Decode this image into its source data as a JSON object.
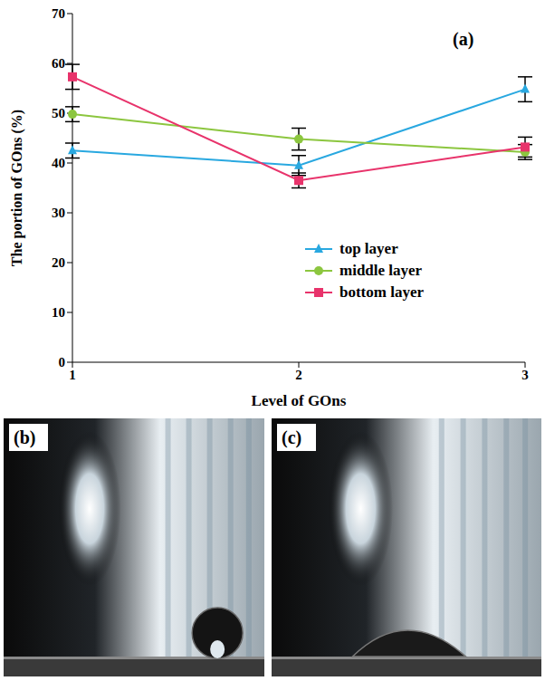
{
  "chart_data": {
    "type": "line",
    "panel_label": "(a)",
    "x_label": "Level of GOns",
    "y_label": "The portion of GOns (%)",
    "x": [
      1,
      2,
      3
    ],
    "xlim": [
      1,
      3
    ],
    "xticks": [
      1,
      2,
      3
    ],
    "ylim": [
      0,
      70
    ],
    "yticks": [
      0,
      10,
      20,
      30,
      40,
      50,
      60,
      70
    ],
    "legend": "lower right",
    "series": [
      {
        "name": "top layer",
        "color": "#29a8e0",
        "marker": "triangle",
        "values": [
          42.5,
          39.5,
          54.8
        ],
        "errors": [
          1.5,
          2.0,
          2.5
        ]
      },
      {
        "name": "middle layer",
        "color": "#8cc63f",
        "marker": "circle",
        "values": [
          49.8,
          44.8,
          42.2
        ],
        "errors": [
          1.5,
          2.2,
          1.5
        ]
      },
      {
        "name": "bottom layer",
        "color": "#e8336b",
        "marker": "square",
        "values": [
          57.3,
          36.5,
          43.2
        ],
        "errors": [
          2.5,
          1.5,
          2.0
        ]
      }
    ]
  },
  "images": [
    {
      "label": "(b)"
    },
    {
      "label": "(c)"
    }
  ]
}
